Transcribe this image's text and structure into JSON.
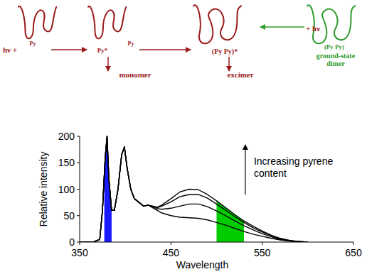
{
  "diagram": {
    "labels": [
      {
        "text": "hν +",
        "color": "#9b1b1b"
      },
      {
        "text": "Py",
        "color": "#9b1b1b"
      },
      {
        "text": "Py*",
        "color": "#9b1b1b"
      },
      {
        "text": "Py",
        "color": "#9b1b1b"
      },
      {
        "text": "(Py Py)*",
        "color": "#9b1b1b"
      },
      {
        "text": "+ hν",
        "color": "#9b1b1b"
      },
      {
        "text": "(Py Py)",
        "color": "#2e9b2e"
      },
      {
        "text": "ground-state dimer",
        "color": "#2e9b2e"
      },
      {
        "text": "monomer",
        "color": "#9b1b1b"
      },
      {
        "text": "excimer",
        "color": "#9b1b1b"
      }
    ]
  },
  "chart_data": {
    "type": "line",
    "x_label": "Wavelength",
    "y_label": "Relative intensity",
    "annotation": "Increasing pyrene content",
    "xlim": [
      350,
      650
    ],
    "xticks": [
      350,
      450,
      550,
      650
    ],
    "ylim": [
      0,
      200
    ],
    "yticks": [
      0,
      50,
      100,
      150,
      200
    ],
    "grid": false,
    "x": [
      350,
      365,
      372,
      375,
      378,
      380,
      382,
      385,
      388,
      392,
      396,
      399,
      402,
      406,
      410,
      415,
      420,
      425,
      430,
      435,
      440,
      450,
      460,
      470,
      480,
      490,
      500,
      510,
      520,
      530,
      540,
      550,
      560,
      570,
      580,
      590,
      600
    ],
    "series": [
      {
        "color": "#000000",
        "values": [
          0,
          0,
          5,
          60,
          160,
          200,
          120,
          60,
          60,
          100,
          165,
          180,
          140,
          100,
          82,
          75,
          68,
          70,
          68,
          66,
          70,
          82,
          95,
          100,
          99,
          90,
          78,
          65,
          52,
          40,
          30,
          21,
          13,
          7,
          3,
          1,
          0
        ]
      },
      {
        "color": "#000000",
        "values": [
          0,
          0,
          5,
          60,
          160,
          200,
          120,
          60,
          60,
          100,
          165,
          180,
          140,
          100,
          82,
          75,
          68,
          70,
          68,
          65,
          68,
          76,
          86,
          90,
          90,
          83,
          72,
          60,
          48,
          37,
          27,
          19,
          12,
          6,
          3,
          1,
          0
        ]
      },
      {
        "color": "#000000",
        "values": [
          0,
          0,
          5,
          60,
          160,
          200,
          120,
          60,
          60,
          100,
          165,
          180,
          140,
          100,
          82,
          75,
          68,
          70,
          67,
          63,
          62,
          64,
          68,
          72,
          72,
          67,
          59,
          50,
          40,
          31,
          23,
          16,
          10,
          5,
          2,
          1,
          0
        ]
      },
      {
        "color": "#000000",
        "values": [
          0,
          0,
          5,
          60,
          160,
          200,
          120,
          60,
          60,
          100,
          165,
          180,
          140,
          100,
          82,
          75,
          68,
          70,
          65,
          60,
          55,
          50,
          47,
          46,
          45,
          42,
          37,
          32,
          26,
          20,
          15,
          11,
          7,
          4,
          2,
          1,
          0
        ]
      }
    ],
    "bands": [
      {
        "from": 377,
        "to": 385,
        "color": "#1a1aff"
      },
      {
        "from": 500,
        "to": 530,
        "color": "#00cc00"
      }
    ]
  }
}
